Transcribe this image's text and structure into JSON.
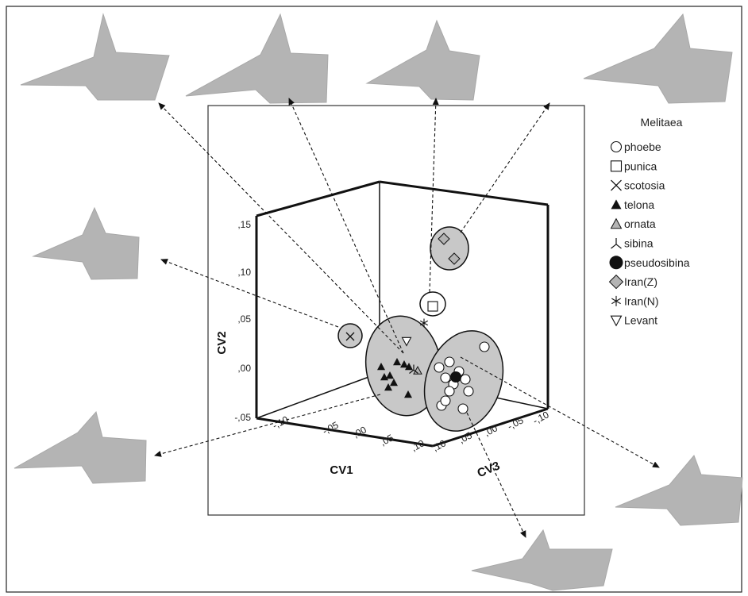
{
  "chart_data": {
    "type": "scatter",
    "projection": "3d",
    "title": "",
    "axes": {
      "x": {
        "label": "CV1",
        "ticks": [
          ",10",
          ",05",
          ",00",
          "-,05",
          "-,10"
        ],
        "range": [
          -0.12,
          0.12
        ]
      },
      "y": {
        "label": "CV2",
        "ticks": [
          ",15",
          ",10",
          ",05",
          ",00",
          "-,05"
        ],
        "range": [
          -0.05,
          0.16
        ]
      },
      "z": {
        "label": "CV3",
        "ticks": [
          ",10",
          ",05",
          ",00",
          "-,05",
          "-,10"
        ],
        "range": [
          -0.12,
          0.12
        ]
      }
    },
    "grid": false,
    "legend": {
      "title": "Melitaea",
      "position": "right",
      "entries": [
        {
          "name": "phoebe",
          "marker": "open-circle"
        },
        {
          "name": "punica",
          "marker": "open-square"
        },
        {
          "name": "scotosia",
          "marker": "x"
        },
        {
          "name": "telona",
          "marker": "filled-triangle"
        },
        {
          "name": "ornata",
          "marker": "gray-triangle"
        },
        {
          "name": "sibina",
          "marker": "tri-branch"
        },
        {
          "name": "pseudosibina",
          "marker": "filled-circle"
        },
        {
          "name": "Iran(Z)",
          "marker": "gray-diamond"
        },
        {
          "name": "Iran(N)",
          "marker": "star"
        },
        {
          "name": "Levant",
          "marker": "down-triangle"
        }
      ]
    },
    "colors": {
      "cluster_fill": "#c8c8c8",
      "shape_fill": "#b4b4b4",
      "ink": "#111111"
    }
  }
}
